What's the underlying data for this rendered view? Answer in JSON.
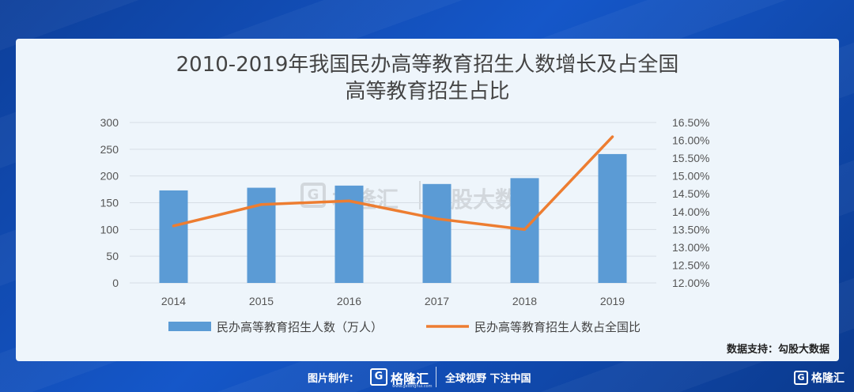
{
  "chart_data": {
    "type": "bar",
    "title_line1": "2010-2019年我国民办高等教育招生人数增长及占全国",
    "title_line2": "高等教育招生占比",
    "categories": [
      "2014",
      "2015",
      "2016",
      "2017",
      "2018",
      "2019"
    ],
    "series": [
      {
        "name": "民办高等教育招生人数（万人）",
        "type": "bar",
        "axis": "left",
        "color": "#5b9bd5",
        "values": [
          173,
          178,
          182,
          185,
          196,
          241
        ]
      },
      {
        "name": "民办高等教育招生人数占全国比",
        "type": "line",
        "axis": "right",
        "color": "#ed7d31",
        "values": [
          13.6,
          14.2,
          14.3,
          13.8,
          13.5,
          16.1
        ]
      }
    ],
    "y_left": {
      "min": 0,
      "max": 300,
      "step": 50,
      "tick_labels": [
        "0",
        "50",
        "100",
        "150",
        "200",
        "250",
        "300"
      ]
    },
    "y_right": {
      "min": 12.0,
      "max": 16.5,
      "step": 0.5,
      "tick_labels": [
        "12.00%",
        "12.50%",
        "13.00%",
        "13.50%",
        "14.00%",
        "14.50%",
        "15.00%",
        "15.50%",
        "16.00%",
        "16.50%"
      ]
    },
    "grid": true,
    "legend_position": "bottom"
  },
  "watermark": {
    "mark": "G",
    "brand": "格隆汇",
    "name": "勾股大数据"
  },
  "source_text": "数据支持：勾股大数据",
  "footer": {
    "made_by": "图片制作：",
    "logo_mark": "G",
    "brand": "格隆汇",
    "url": "www.gelonghui.com",
    "slogan": "全球视野 下注中国"
  },
  "corner_logo": {
    "mark": "G",
    "text": "格隆汇"
  },
  "colors": {
    "bar": "#5b9bd5",
    "line": "#ed7d31",
    "card_bg": "#eef5fb",
    "page_bg": "#1557c9"
  }
}
